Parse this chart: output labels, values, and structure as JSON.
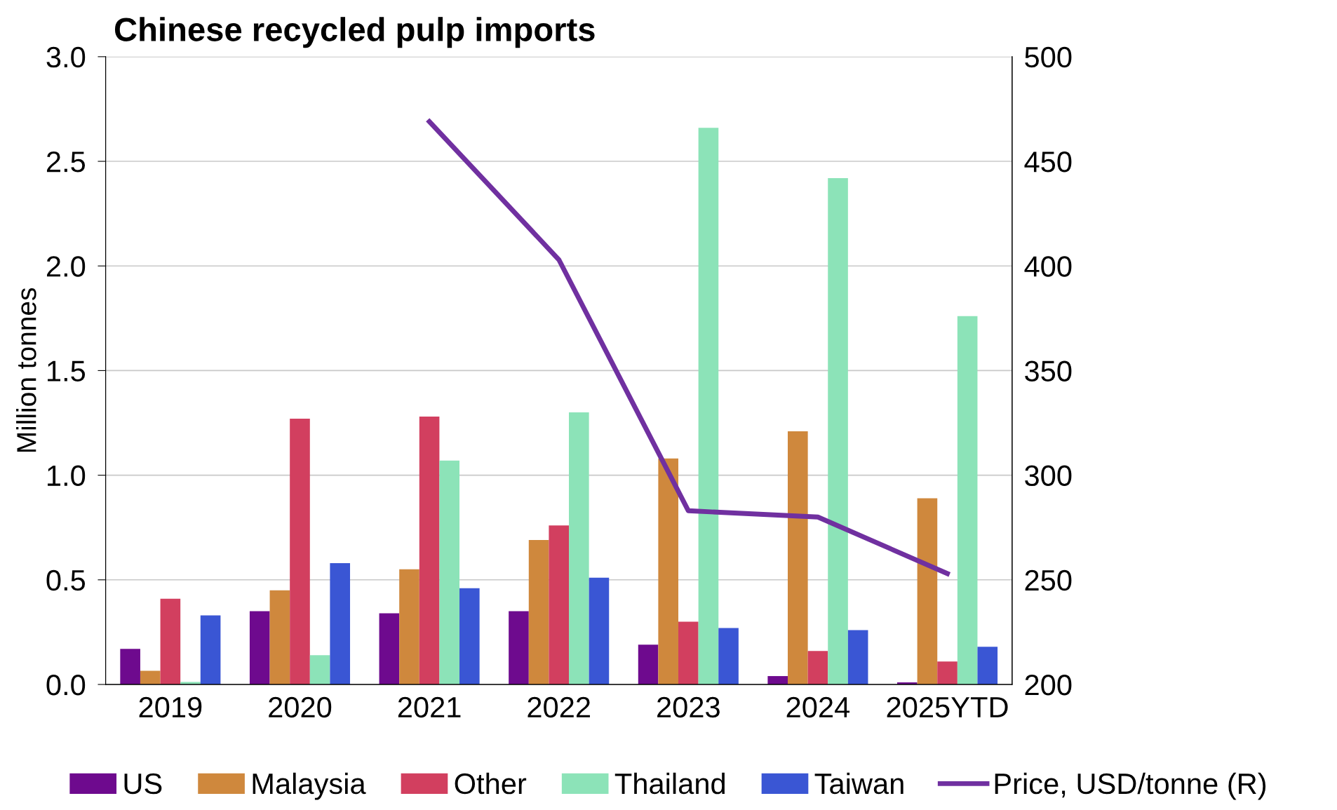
{
  "chart_data": {
    "type": "bar",
    "title": "Chinese recycled pulp imports",
    "ylabel": "Million tonnes",
    "categories": [
      "2019",
      "2020",
      "2021",
      "2022",
      "2023",
      "2024",
      "2025YTD"
    ],
    "series": [
      {
        "name": "US",
        "color": "#6e0a8e",
        "values": [
          0.17,
          0.35,
          0.34,
          0.35,
          0.19,
          0.04,
          0.01
        ]
      },
      {
        "name": "Malaysia",
        "color": "#cf883d",
        "values": [
          0.065,
          0.45,
          0.55,
          0.69,
          1.08,
          1.21,
          0.89
        ]
      },
      {
        "name": "Other",
        "color": "#d23f5f",
        "values": [
          0.41,
          1.27,
          1.28,
          0.76,
          0.3,
          0.16,
          0.11
        ]
      },
      {
        "name": "Thailand",
        "color": "#8ce3b8",
        "values": [
          0.012,
          0.14,
          1.07,
          1.3,
          2.66,
          2.42,
          1.76
        ]
      },
      {
        "name": "Taiwan",
        "color": "#3a56d4",
        "values": [
          0.33,
          0.58,
          0.46,
          0.51,
          0.27,
          0.26,
          0.18
        ]
      },
      {
        "name": "Price, USD/tonne (R)",
        "color": "#7030a0",
        "type": "line",
        "axis": "y2",
        "values": [
          null,
          null,
          469,
          403,
          283,
          280,
          253
        ]
      }
    ],
    "ylim": [
      0,
      3.0
    ],
    "yticks": [
      {
        "value": 0,
        "label": "0.0"
      },
      {
        "value": 0.5,
        "label": "0.5"
      },
      {
        "value": 1.0,
        "label": "1.0"
      },
      {
        "value": 1.5,
        "label": "1.5"
      },
      {
        "value": 2.0,
        "label": "2.0"
      },
      {
        "value": 2.5,
        "label": "2.5"
      },
      {
        "value": 3.0,
        "label": "3.0"
      }
    ],
    "y2lim": [
      200,
      500
    ],
    "y2ticks": [
      200,
      250,
      300,
      350,
      400,
      450,
      500
    ],
    "grid": "y",
    "legend": "bottom"
  }
}
